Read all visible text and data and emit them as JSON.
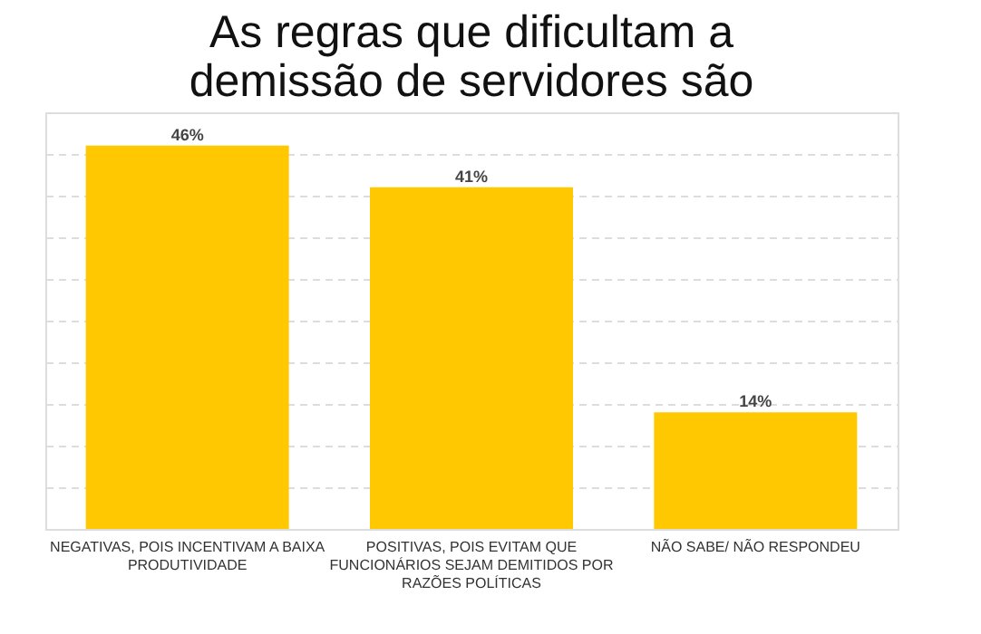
{
  "chart_data": {
    "type": "bar",
    "title": "As regras que dificultam a demissão de servidores são",
    "categories": [
      "NEGATIVAS, POIS INCENTIVAM A BAIXA PRODUTIVIDADE",
      "POSITIVAS, POIS EVITAM QUE FUNCIONÁRIOS SEJAM DEMITIDOS POR RAZÕES POLÍTICAS",
      "NÃO SABE/ NÃO RESPONDEU"
    ],
    "values": [
      46,
      41,
      14
    ],
    "color": "#ffc800",
    "value_labels": [
      "46%",
      "41%",
      "14%"
    ],
    "ylim": [
      0,
      50
    ],
    "grid": "y",
    "tick_labels": "x"
  }
}
